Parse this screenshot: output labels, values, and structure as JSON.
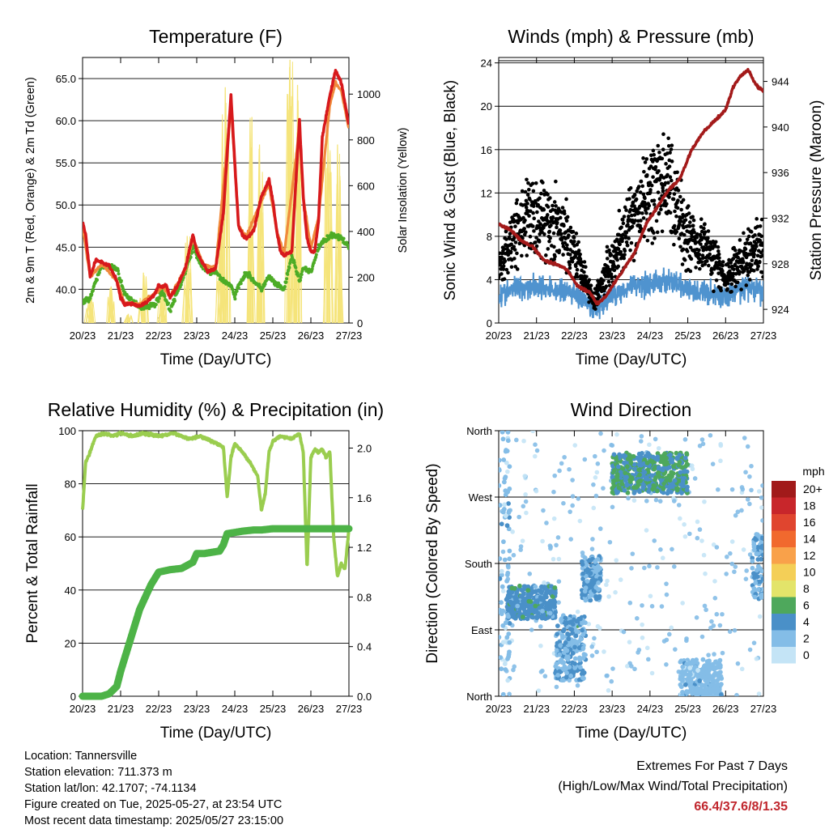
{
  "chart_data": [
    {
      "id": "temperature",
      "type": "line",
      "title": "Temperature (F)",
      "xlabel": "Time (Day/UTC)",
      "ylabel": "2m & 9m T (Red, Orange) & 2m Td (Green)",
      "ylabel_right": "Solar Insolation (Yellow)",
      "x_ticks": [
        "20/23",
        "21/23",
        "22/23",
        "23/23",
        "24/23",
        "25/23",
        "26/23",
        "27/23"
      ],
      "y_ticks": [
        "40.0",
        "45.0",
        "50.0",
        "55.0",
        "60.0",
        "65.0"
      ],
      "y_right_ticks": [
        "0",
        "200",
        "400",
        "600",
        "800",
        "1000"
      ],
      "ylim": [
        36,
        67.5
      ],
      "y_right_lim": [
        0,
        1160
      ],
      "grid": "horizontal",
      "colors": {
        "t2m": "#d7191c",
        "t9m": "#f08a3c",
        "td2m": "#4dac26",
        "solar": "#f5e47a"
      },
      "series": [
        {
          "key": "t2m",
          "t": [
            0,
            0.08,
            0.2,
            0.35,
            0.5,
            0.7,
            0.9,
            1.0,
            1.1,
            1.3,
            1.5,
            1.7,
            1.9,
            2.0,
            2.1,
            2.2,
            2.3,
            2.5,
            2.7,
            2.9,
            3.0,
            3.1,
            3.2,
            3.3,
            3.5,
            3.7,
            3.9,
            4.0,
            4.1,
            4.2,
            4.3,
            4.5,
            4.7,
            4.9,
            5.0,
            5.1,
            5.2,
            5.3,
            5.5,
            5.7,
            5.8,
            5.9,
            6.0,
            6.1,
            6.2,
            6.3,
            6.5,
            6.65,
            6.8,
            6.9,
            7.0
          ],
          "values": [
            48.0,
            46.5,
            41.5,
            43.5,
            43.2,
            42.8,
            41.0,
            39.0,
            38.2,
            38.3,
            38.0,
            38.5,
            39.5,
            40.5,
            40.3,
            40.5,
            39.0,
            40.5,
            42.5,
            46.5,
            44.5,
            43.5,
            42.8,
            42.0,
            42.5,
            49.0,
            63.0,
            55.0,
            47.5,
            46.5,
            46.0,
            47.0,
            51.0,
            53.0,
            50.5,
            47.0,
            44.5,
            44.0,
            44.5,
            60.0,
            51.0,
            46.0,
            44.5,
            44.5,
            48.0,
            58.0,
            63.0,
            66.0,
            64.5,
            62.0,
            59.5
          ]
        },
        {
          "key": "t9m",
          "t": [
            0,
            0.2,
            0.5,
            0.9,
            1.1,
            1.5,
            1.9,
            2.1,
            2.3,
            2.7,
            2.9,
            3.2,
            3.5,
            3.9,
            4.1,
            4.3,
            4.7,
            4.9,
            5.1,
            5.3,
            5.7,
            5.8,
            6.0,
            6.2,
            6.5,
            6.65,
            6.8,
            7.0
          ],
          "values": [
            47.5,
            41.5,
            43.0,
            41.0,
            38.4,
            38.2,
            39.5,
            40.3,
            39.2,
            42.3,
            46.0,
            42.8,
            42.6,
            62.0,
            47.5,
            46.2,
            50.5,
            52.5,
            47.0,
            44.2,
            59.0,
            51.0,
            44.8,
            48.5,
            62.0,
            64.5,
            63.5,
            59.0
          ]
        },
        {
          "key": "td2m",
          "t": [
            0,
            0.2,
            0.5,
            0.9,
            1.1,
            1.5,
            1.9,
            2.1,
            2.3,
            2.7,
            2.9,
            3.1,
            3.3,
            3.5,
            3.7,
            3.9,
            4.0,
            4.1,
            4.3,
            4.5,
            4.7,
            4.9,
            5.1,
            5.3,
            5.5,
            5.7,
            5.8,
            6.0,
            6.2,
            6.4,
            6.6,
            6.8,
            7.0
          ],
          "values": [
            38.5,
            39.0,
            42.8,
            42.5,
            39.5,
            37.8,
            38.2,
            39.8,
            37.5,
            42.0,
            45.0,
            43.0,
            42.0,
            42.0,
            41.0,
            40.5,
            39.0,
            40.5,
            42.0,
            41.0,
            40.0,
            41.5,
            40.5,
            40.0,
            44.0,
            41.0,
            42.5,
            42.0,
            45.0,
            46.0,
            46.5,
            46.0,
            45.0
          ]
        },
        {
          "key": "solar",
          "axis": "right",
          "peaks": [
            {
              "t": 0.2,
              "value": 120
            },
            {
              "t": 0.75,
              "value": 160
            },
            {
              "t": 1.2,
              "value": 40
            },
            {
              "t": 1.6,
              "value": 220
            },
            {
              "t": 2.1,
              "value": 170
            },
            {
              "t": 2.75,
              "value": 380
            },
            {
              "t": 3.6,
              "value": 420
            },
            {
              "t": 3.75,
              "value": 1030
            },
            {
              "t": 4.45,
              "value": 900
            },
            {
              "t": 4.65,
              "value": 780
            },
            {
              "t": 5.45,
              "value": 1150
            },
            {
              "t": 5.65,
              "value": 1040
            },
            {
              "t": 6.45,
              "value": 900
            },
            {
              "t": 6.7,
              "value": 780
            }
          ]
        }
      ]
    },
    {
      "id": "winds",
      "type": "scatter",
      "title": "Winds (mph) & Pressure (mb)",
      "xlabel": "Time (Day/UTC)",
      "ylabel": "Sonic Wind & Gust (Blue, Black)",
      "ylabel_right": "Station Pressure (Maroon)",
      "x_ticks": [
        "20/23",
        "21/23",
        "22/23",
        "23/23",
        "24/23",
        "25/23",
        "26/23",
        "27/23"
      ],
      "y_ticks": [
        "0",
        "4",
        "8",
        "12",
        "16",
        "20",
        "24"
      ],
      "y_right_ticks": [
        "924",
        "928",
        "932",
        "936",
        "940",
        "944"
      ],
      "ylim": [
        0,
        24.5
      ],
      "y_right_lim": [
        922.8,
        946.1
      ],
      "grid": "horizontal",
      "colors": {
        "wind": "#4f93cf",
        "gust": "#000000",
        "pressure": "#a31a1a"
      },
      "series": [
        {
          "key": "wind",
          "t": [
            0,
            0.5,
            1.0,
            1.5,
            2.0,
            2.5,
            3.0,
            3.5,
            4.0,
            4.5,
            5.0,
            5.5,
            6.0,
            6.5,
            7.0
          ],
          "values": [
            2.5,
            3.3,
            3.4,
            3.0,
            2.8,
            1.2,
            2.5,
            3.5,
            3.6,
            4.0,
            3.0,
            2.8,
            2.4,
            3.4,
            2.8
          ]
        },
        {
          "key": "gust",
          "t": [
            0,
            0.5,
            1.0,
            1.5,
            2.0,
            2.5,
            3.0,
            3.5,
            4.0,
            4.5,
            5.0,
            5.5,
            6.0,
            6.5,
            7.0
          ],
          "values": [
            5,
            9,
            10,
            9,
            7,
            2,
            6,
            9,
            12,
            13,
            8,
            7,
            4,
            6,
            7
          ]
        },
        {
          "key": "pressure",
          "axis": "right",
          "t": [
            0,
            0.3,
            0.6,
            0.9,
            1.2,
            1.5,
            1.8,
            2.1,
            2.4,
            2.6,
            2.8,
            3.0,
            3.3,
            3.6,
            3.9,
            4.2,
            4.5,
            4.8,
            5.1,
            5.4,
            5.7,
            6.0,
            6.2,
            6.4,
            6.6,
            6.75,
            6.85,
            7.0
          ],
          "values": [
            931.5,
            931.0,
            930.0,
            929.5,
            928.3,
            928.0,
            927.5,
            926.0,
            925.5,
            924.5,
            925.0,
            926.0,
            927.5,
            929.0,
            931.5,
            933.0,
            934.5,
            935.5,
            938.0,
            939.5,
            940.5,
            941.5,
            943.5,
            944.5,
            945.0,
            944.0,
            943.5,
            943.2
          ]
        }
      ]
    },
    {
      "id": "humidity",
      "type": "line",
      "title": "Relative Humidity (%) & Precipitation (in)",
      "xlabel": "Time (Day/UTC)",
      "ylabel": "Percent & Total Rainfall",
      "x_ticks": [
        "20/23",
        "21/23",
        "22/23",
        "23/23",
        "24/23",
        "25/23",
        "26/23",
        "27/23"
      ],
      "y_ticks": [
        "0",
        "20",
        "40",
        "60",
        "80",
        "100"
      ],
      "y_right_ticks": [
        "0.0",
        "0.4",
        "0.8",
        "1.2",
        "1.6",
        "2.0"
      ],
      "ylim": [
        0,
        100
      ],
      "y_right_lim": [
        0,
        2.14
      ],
      "grid": "horizontal",
      "colors": {
        "rh": "#9acd4f",
        "precip": "#4db347"
      },
      "series": [
        {
          "key": "rh",
          "t": [
            0,
            0.08,
            0.2,
            0.35,
            0.6,
            0.8,
            1.0,
            1.3,
            1.6,
            2.0,
            2.4,
            2.8,
            3.1,
            3.4,
            3.7,
            3.8,
            3.85,
            3.9,
            4.0,
            4.2,
            4.4,
            4.6,
            4.7,
            4.8,
            4.9,
            5.0,
            5.2,
            5.5,
            5.7,
            5.8,
            5.9,
            6.0,
            6.1,
            6.2,
            6.3,
            6.4,
            6.5,
            6.6,
            6.7,
            6.8,
            6.9,
            7.0
          ],
          "values": [
            70,
            88,
            92,
            98,
            99,
            98,
            99,
            98,
            99,
            98,
            99,
            97,
            98,
            96,
            94,
            75,
            82,
            90,
            95,
            92,
            88,
            83,
            70,
            76,
            92,
            96,
            98,
            97,
            99,
            92,
            48,
            90,
            93,
            92,
            93,
            90,
            92,
            60,
            45,
            50,
            48,
            63
          ]
        },
        {
          "key": "precip",
          "axis": "right",
          "t": [
            0,
            0.5,
            0.7,
            0.9,
            1.0,
            1.2,
            1.5,
            1.8,
            2.0,
            2.3,
            2.6,
            2.9,
            3.0,
            3.2,
            3.4,
            3.6,
            3.7,
            3.8,
            4.0,
            4.2,
            4.5,
            4.7,
            5.0,
            6.0,
            7.0
          ],
          "values": [
            0,
            0,
            0.02,
            0.08,
            0.2,
            0.4,
            0.7,
            0.9,
            1.0,
            1.02,
            1.03,
            1.08,
            1.15,
            1.15,
            1.16,
            1.17,
            1.22,
            1.31,
            1.32,
            1.33,
            1.34,
            1.34,
            1.35,
            1.35,
            1.35
          ]
        }
      ]
    },
    {
      "id": "direction",
      "type": "scatter",
      "title": "Wind Direction",
      "xlabel": "Time (Day/UTC)",
      "ylabel": "Direction (Colored By Speed)",
      "x_ticks": [
        "20/23",
        "21/23",
        "22/23",
        "23/23",
        "24/23",
        "25/23",
        "26/23",
        "27/23"
      ],
      "y_ticks": [
        "North",
        "East",
        "South",
        "West",
        "North"
      ],
      "ylim": [
        0,
        360
      ],
      "grid": "horizontal",
      "legend": {
        "placement": "right",
        "title": "mph",
        "labels": [
          "20+",
          "18",
          "16",
          "14",
          "12",
          "10",
          "8",
          "6",
          "4",
          "2",
          "0"
        ],
        "colors": [
          "#a11a1a",
          "#c8262b",
          "#e0452f",
          "#f1692e",
          "#f9a14a",
          "#f4cf57",
          "#e3e46a",
          "#4ea85c",
          "#4a90c8",
          "#84bde7",
          "#c4e4f6"
        ]
      },
      "clusters": [
        {
          "t": [
            0.0,
            0.3
          ],
          "dir": [
            0,
            360
          ],
          "speed": 2
        },
        {
          "t": [
            0.2,
            1.5
          ],
          "dir": [
            105,
            150
          ],
          "speed": 4
        },
        {
          "t": [
            1.5,
            2.3
          ],
          "dir": [
            20,
            110
          ],
          "speed": 3
        },
        {
          "t": [
            2.2,
            2.7
          ],
          "dir": [
            130,
            190
          ],
          "speed": 3
        },
        {
          "t": [
            3.0,
            5.0
          ],
          "dir": [
            275,
            330
          ],
          "speed": 5
        },
        {
          "t": [
            4.8,
            5.9
          ],
          "dir": [
            0,
            50
          ],
          "speed": 2
        },
        {
          "t": [
            6.7,
            7.0
          ],
          "dir": [
            130,
            220
          ],
          "speed": 3
        }
      ]
    }
  ],
  "info": {
    "location": "Location: Tannersville",
    "elevation": "Station elevation: 711.373 m",
    "latlon": "Station lat/lon: 42.1707; -74.1134",
    "created": "Figure created on Tue, 2025-05-27, at 23:54 UTC",
    "recent": "Most recent data timestamp: 2025/05/27 23:15:00"
  },
  "extremes": {
    "title": "Extremes For Past 7 Days",
    "subtitle": "(High/Low/Max Wind/Total Precipitation)",
    "values": "66.4/37.6/8/1.35"
  }
}
